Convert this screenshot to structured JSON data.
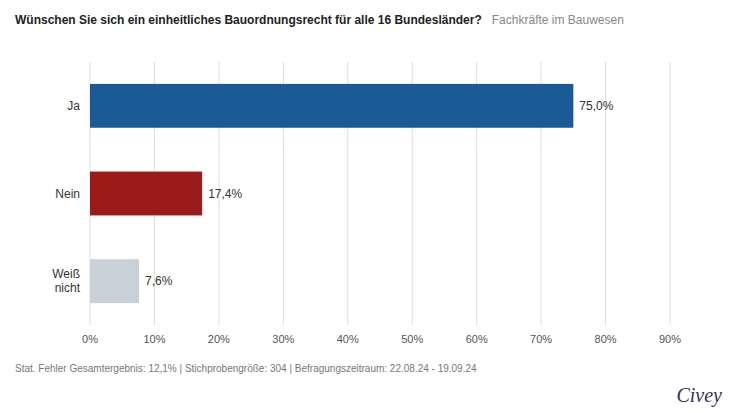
{
  "chart_data": {
    "type": "bar",
    "orientation": "horizontal",
    "title": "Wünschen Sie sich ein einheitliches Bauordnungsrecht für alle 16 Bundesländer?",
    "subtitle": "Fachkräfte im Bauwesen",
    "categories": [
      "Ja",
      "Nein",
      "Weiß\nnicht"
    ],
    "values": [
      75.0,
      17.4,
      7.6
    ],
    "value_labels": [
      "75,0%",
      "17,4%",
      "7,6%"
    ],
    "data_labels": true,
    "colors": [
      "#1a5a96",
      "#9b1a1a",
      "#c8d0d8"
    ],
    "xlim": [
      0,
      90
    ],
    "xticks": [
      {
        "value": 0,
        "label": "0%"
      },
      {
        "value": 10,
        "label": "10%"
      },
      {
        "value": 20,
        "label": "20%"
      },
      {
        "value": 30,
        "label": "30%"
      },
      {
        "value": 40,
        "label": "40%"
      },
      {
        "value": 50,
        "label": "50%"
      },
      {
        "value": 60,
        "label": "60%"
      },
      {
        "value": 70,
        "label": "70%"
      },
      {
        "value": 80,
        "label": "80%"
      },
      {
        "value": 90,
        "label": "90%"
      }
    ],
    "grid": true,
    "annotations": [
      "Stat. Fehler Gesamtergebnis: 12,1% | Stichprobengröße: 304 | Befragungszeitraum: 22.08.24 - 19.09.24",
      "Civey"
    ]
  }
}
